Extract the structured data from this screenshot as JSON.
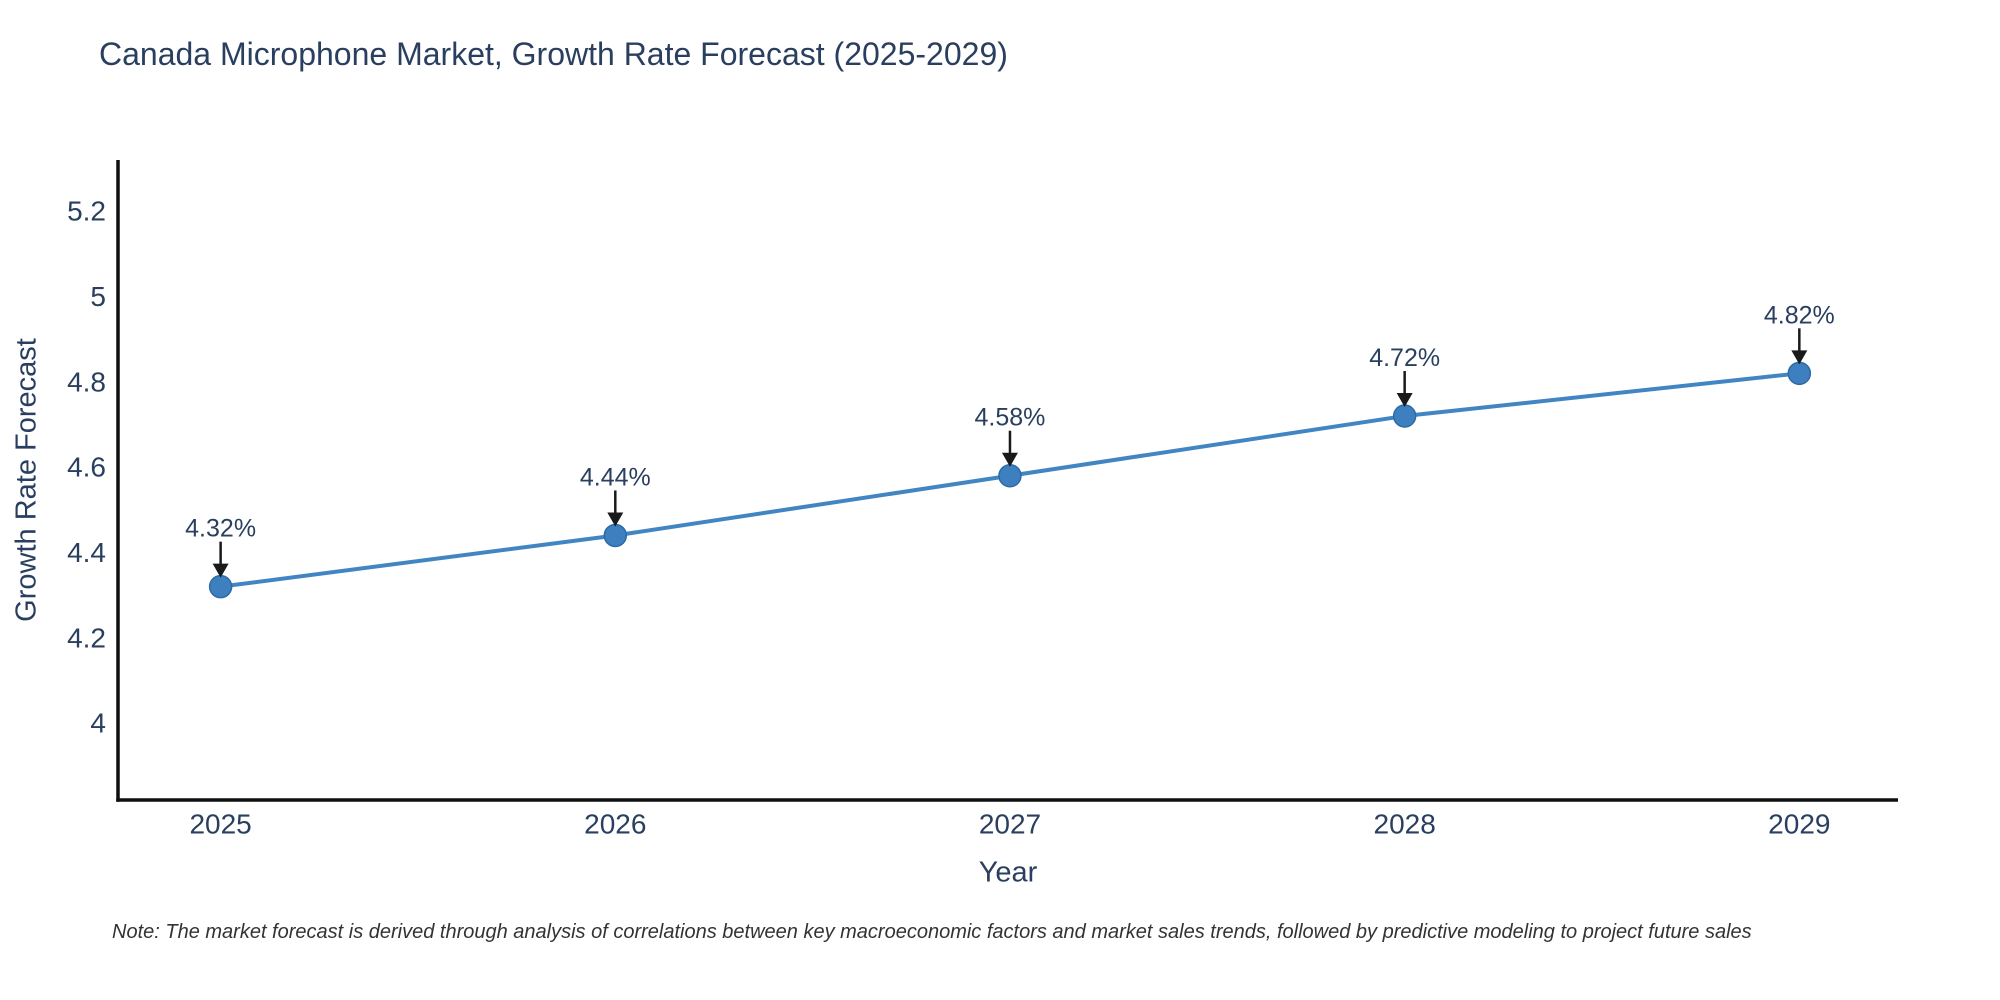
{
  "title": "Canada Microphone Market, Growth Rate Forecast (2025-2029)",
  "note": "Note: The market forecast is derived through analysis of correlations between key macroeconomic factors and market sales trends, followed by predictive modeling to project future sales",
  "chart_data": {
    "type": "line",
    "title": "Canada Microphone Market, Growth Rate Forecast (2025-2029)",
    "xlabel": "Year",
    "ylabel": "Growth Rate Forecast",
    "x": [
      2025,
      2026,
      2027,
      2028,
      2029
    ],
    "xtick_labels": [
      "2025",
      "2026",
      "2027",
      "2028",
      "2029"
    ],
    "series": [
      {
        "name": "Growth Rate Forecast",
        "values": [
          4.32,
          4.44,
          4.58,
          4.72,
          4.82
        ]
      }
    ],
    "point_labels": [
      "4.32%",
      "4.44%",
      "4.58%",
      "4.72%",
      "4.82%"
    ],
    "yticks": [
      4,
      4.2,
      4.4,
      4.6,
      4.8,
      5,
      5.2
    ],
    "ytick_labels": [
      "4",
      "4.2",
      "4.4",
      "4.6",
      "4.8",
      "5",
      "5.2"
    ],
    "ylim": [
      3.82,
      5.32
    ],
    "xlim": [
      2024.74,
      2029.25
    ],
    "grid": false,
    "legend": false,
    "annotation_style": "down-arrow",
    "colors": {
      "line": "#4285c3",
      "marker": "#3e7fbf",
      "marker_edge": "#2c6ba5",
      "axis": "#0f0f0f",
      "text": "#2a3f5f",
      "arrow": "#1a1a1a",
      "background": "#ffffff"
    }
  }
}
